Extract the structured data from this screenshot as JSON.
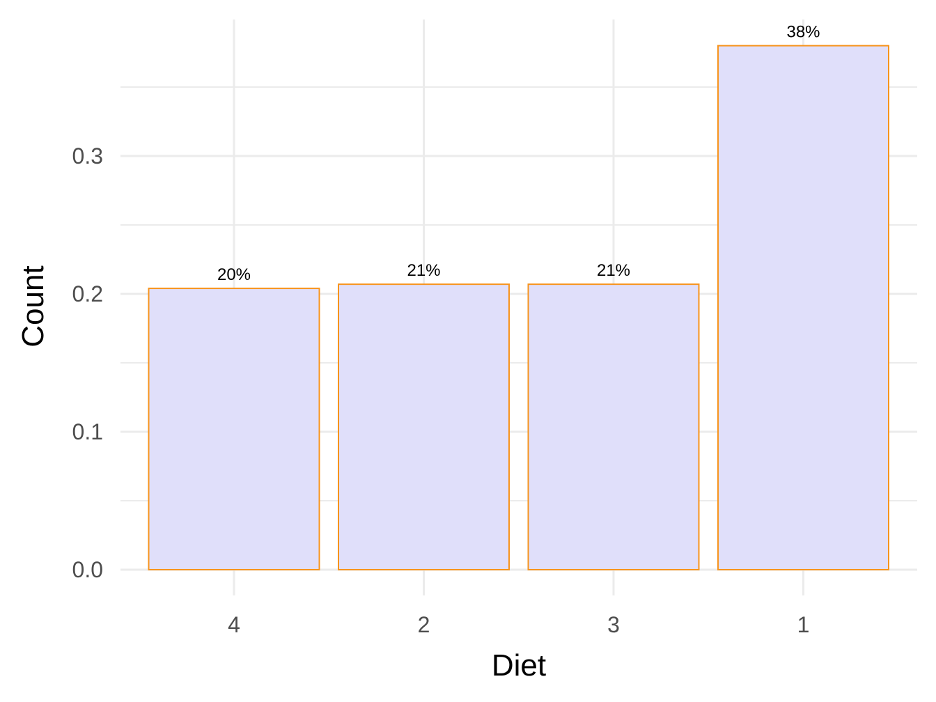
{
  "chart_data": {
    "type": "bar",
    "categories": [
      "4",
      "2",
      "3",
      "1"
    ],
    "values": [
      0.204,
      0.207,
      0.207,
      0.38
    ],
    "data_labels": [
      "20%",
      "21%",
      "21%",
      "38%"
    ],
    "title": "",
    "xlabel": "Diet",
    "ylabel": "Count",
    "ylim": [
      0,
      0.38
    ],
    "yticks": [
      0.0,
      0.1,
      0.2,
      0.3
    ],
    "ytick_labels": [
      "0.0",
      "0.1",
      "0.2",
      "0.3"
    ],
    "grid": true,
    "legend": "none",
    "colors": {
      "bar_fill": "#e0dffa",
      "bar_stroke": "#f7941d",
      "grid": "#ebebeb",
      "tick_text": "#4d4d4d",
      "axis_title": "#000000"
    }
  }
}
